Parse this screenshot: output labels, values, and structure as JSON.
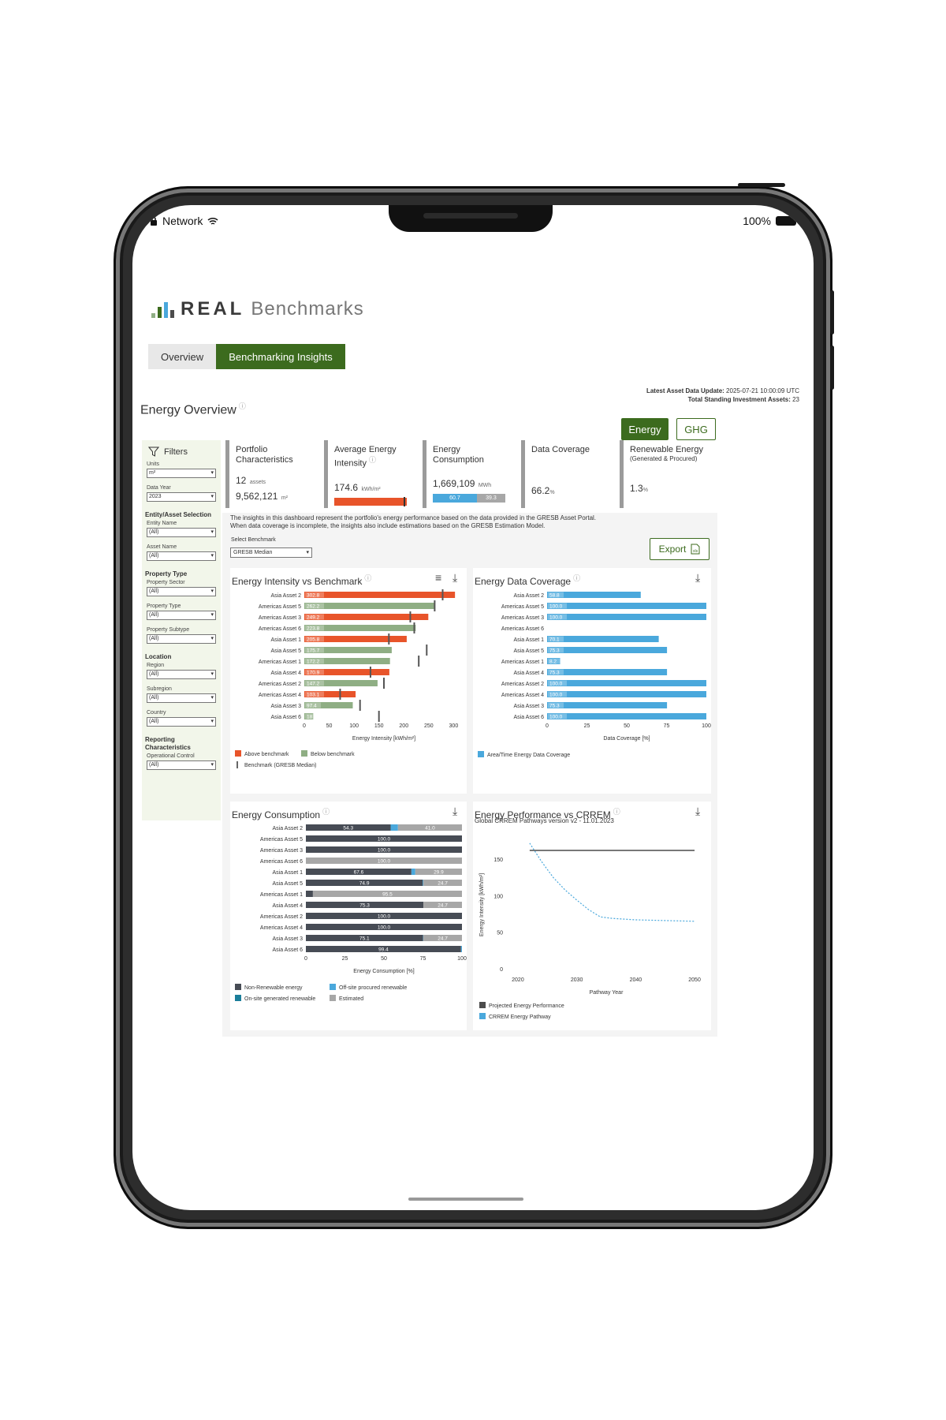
{
  "status_bar": {
    "carrier": "Network",
    "battery": "100%"
  },
  "app": {
    "logo_real": "REAL",
    "logo_benchmarks": "Benchmarks"
  },
  "tabs": [
    {
      "label": "Overview"
    },
    {
      "label": "Benchmarking Insights"
    }
  ],
  "meta": {
    "update_label": "Latest Asset Data Update:",
    "update_value": "2025-07-21 10:00:09 UTC",
    "assets_label": "Total Standing Investment Assets:",
    "assets_value": "23"
  },
  "page_title": "Energy Overview",
  "toggle": {
    "energy": "Energy",
    "ghg": "GHG"
  },
  "filters": {
    "title": "Filters",
    "units_label": "Units",
    "units_value": "m²",
    "year_label": "Data Year",
    "year_value": "2023",
    "entity_section": "Entity/Asset Selection",
    "entity_label": "Entity Name",
    "entity_value": "(All)",
    "asset_label": "Asset Name",
    "asset_value": "(All)",
    "ptype_section": "Property Type",
    "sector_label": "Property Sector",
    "sector_value": "(All)",
    "type_label": "Property Type",
    "type_value": "(All)",
    "subtype_label": "Property Subtype",
    "subtype_value": "(All)",
    "loc_section": "Location",
    "region_label": "Region",
    "region_value": "(All)",
    "subregion_label": "Subregion",
    "subregion_value": "(All)",
    "country_label": "Country",
    "country_value": "(All)",
    "rep_section": "Reporting Characteristics",
    "opctrl_label": "Operational Control",
    "opctrl_value": "(All)"
  },
  "kpis": {
    "portfolio": {
      "title1": "Portfolio",
      "title2": "Characteristics",
      "assets": "12",
      "assets_unit": "assets",
      "area": "9,562,121",
      "area_unit": "m²"
    },
    "intensity": {
      "title1": "Average Energy",
      "title2": "Intensity",
      "value": "174.6",
      "unit": "kWh/m²"
    },
    "consumption": {
      "title1": "Energy",
      "title2": "Consumption",
      "value": "1,669,109",
      "unit": "MWh",
      "seg1": "60.7",
      "seg2": "39.3",
      "seg1_pct": 60.7
    },
    "coverage": {
      "title": "Data Coverage",
      "value": "66.2",
      "unit": "%"
    },
    "renewable": {
      "title": "Renewable Energy",
      "subtitle": "(Generated & Procured)",
      "value": "1.3",
      "unit": "%"
    }
  },
  "note": {
    "line1": "The insights in this dashboard represent the portfolio's energy performance based on the data provided in the GRESB Asset Portal.",
    "line2": "When data coverage is incomplete, the insights also include estimations based on the GRESB Estimation Model."
  },
  "benchmark": {
    "label": "Select Benchmark",
    "value": "GRESB Median"
  },
  "export_label": "Export",
  "colors": {
    "green": "#3c6b1e",
    "above": "#e8542a",
    "below": "#8fae84",
    "coverage": "#4aa8dc",
    "nonrenew": "#474c55",
    "offsite": "#4aa8dc",
    "onsite": "#1b7e9a",
    "estimated": "#a7a7a7",
    "crrem": "#4aa8dc",
    "projected": "#4c4c4c"
  },
  "chart_data": [
    {
      "id": "intensity",
      "type": "bar",
      "title": "Energy Intensity vs Benchmark",
      "xlabel": "Energy Intensity [kWh/m²]",
      "xlim": [
        0,
        320
      ],
      "xticks": [
        0,
        50,
        100,
        150,
        200,
        250,
        300
      ],
      "categories": [
        "Asia Asset 2",
        "Americas Asset 5",
        "Americas Asset 3",
        "Americas Asset 6",
        "Asia Asset 1",
        "Asia Asset 5",
        "Americas Asset 1",
        "Asia Asset 4",
        "Americas Asset 2",
        "Americas Asset 4",
        "Asia Asset 3",
        "Asia Asset 6"
      ],
      "values": [
        302.8,
        262.2,
        249.2,
        223.8,
        205.8,
        175.7,
        172.2,
        170.9,
        147.2,
        103.1,
        97.4,
        18
      ],
      "labels": [
        "302.8",
        "262.2",
        "249.2",
        "223.8",
        "205.8",
        "175.7",
        "172.2",
        "170.9",
        "147.2",
        "103.1",
        "97.4",
        "18"
      ],
      "above": [
        true,
        false,
        true,
        false,
        true,
        false,
        false,
        true,
        false,
        true,
        false,
        false
      ],
      "benchmark": [
        278,
        262,
        213,
        221,
        170,
        246,
        230,
        133,
        160,
        72,
        112,
        150
      ],
      "legend": [
        "Above benchmark",
        "Below benchmark",
        "Benchmark (GRESB Median)"
      ]
    },
    {
      "id": "coverage",
      "type": "bar",
      "title": "Energy Data Coverage",
      "xlabel": "Data Coverage [%]",
      "xlim": [
        0,
        100
      ],
      "xticks": [
        0,
        25,
        50,
        75,
        100
      ],
      "categories": [
        "Asia Asset 2",
        "Americas Asset 5",
        "Americas Asset 3",
        "Americas Asset 6",
        "Asia Asset 1",
        "Asia Asset 5",
        "Americas Asset 1",
        "Asia Asset 4",
        "Americas Asset 2",
        "Americas Asset 4",
        "Asia Asset 3",
        "Asia Asset 6"
      ],
      "values": [
        58.8,
        100,
        100,
        0,
        70.1,
        75.3,
        8.2,
        75.3,
        100,
        100,
        75.3,
        100
      ],
      "labels": [
        "58.8",
        "100.0",
        "100.0",
        "",
        "70.1",
        "75.3",
        "8.2",
        "75.3",
        "100.0",
        "100.0",
        "75.3",
        "100.0"
      ],
      "legend": [
        "Area/Time Energy Data Coverage"
      ]
    },
    {
      "id": "consumption",
      "type": "bar",
      "title": "Energy Consumption",
      "xlabel": "Energy Consumption [%]",
      "xlim": [
        0,
        100
      ],
      "xticks": [
        0,
        25,
        50,
        75,
        100
      ],
      "categories": [
        "Asia Asset 2",
        "Americas Asset 5",
        "Americas Asset 3",
        "Americas Asset 6",
        "Asia Asset 1",
        "Asia Asset 5",
        "Americas Asset 1",
        "Asia Asset 4",
        "Americas Asset 2",
        "Americas Asset 4",
        "Asia Asset 3",
        "Asia Asset 6"
      ],
      "series": [
        {
          "name": "Non-Renewable energy",
          "values": [
            54.3,
            100,
            100,
            0,
            67.6,
            74.9,
            4.5,
            75.3,
            100,
            100,
            75.1,
            99.4
          ],
          "labels": [
            "54.3",
            "100.0",
            "100.0",
            "",
            "67.6",
            "74.9",
            "",
            "75.3",
            "100.0",
            "100.0",
            "75.1",
            "99.4"
          ]
        },
        {
          "name": "Off-site procured renewable",
          "values": [
            4.7,
            0,
            0,
            0,
            2.5,
            0.4,
            0,
            0,
            0,
            0,
            0.2,
            0.6
          ],
          "labels": [
            "",
            "",
            "",
            "",
            "",
            "",
            "",
            "",
            "",
            "",
            "",
            ""
          ]
        },
        {
          "name": "On-site generated renewable",
          "values": [
            0,
            0,
            0,
            0,
            0,
            0,
            0,
            0,
            0,
            0,
            0,
            0
          ],
          "labels": [
            "",
            "",
            "",
            "",
            "",
            "",
            "",
            "",
            "",
            "",
            "",
            ""
          ]
        },
        {
          "name": "Estimated",
          "values": [
            41.0,
            0,
            0,
            100,
            29.9,
            24.7,
            95.5,
            24.7,
            0,
            0,
            24.7,
            0
          ],
          "labels": [
            "41.0",
            "",
            "",
            "100.0",
            "29.9",
            "24.7",
            "95.5",
            "24.7",
            "",
            "",
            "24.7",
            ""
          ]
        }
      ],
      "legend": [
        "Non-Renewable energy",
        "Off-site procured renewable",
        "On-site generated renewable",
        "Estimated"
      ]
    },
    {
      "id": "crrem",
      "type": "line",
      "title": "Energy Performance vs CRREM",
      "subtitle": "Global CRREM Pathways version v2 - 11.01.2023",
      "xlabel": "Pathway Year",
      "ylabel": "Energy Intensity [kWh/m²]",
      "xlim": [
        2018,
        2052
      ],
      "ylim": [
        0,
        175
      ],
      "xticks": [
        2020,
        2030,
        2040,
        2050
      ],
      "yticks": [
        0,
        50,
        100,
        150
      ],
      "series": [
        {
          "name": "Projected Energy Performance",
          "x": [
            2022,
            2050
          ],
          "y": [
            162,
            162
          ]
        },
        {
          "name": "CRREM Energy Pathway",
          "x": [
            2022,
            2024,
            2026,
            2028,
            2030,
            2032,
            2034,
            2036,
            2040,
            2045,
            2050
          ],
          "y": [
            172,
            147,
            125,
            108,
            94,
            81,
            71,
            69,
            67,
            66,
            65
          ]
        }
      ],
      "legend": [
        "Projected Energy Performance",
        "CRREM Energy Pathway"
      ]
    }
  ]
}
